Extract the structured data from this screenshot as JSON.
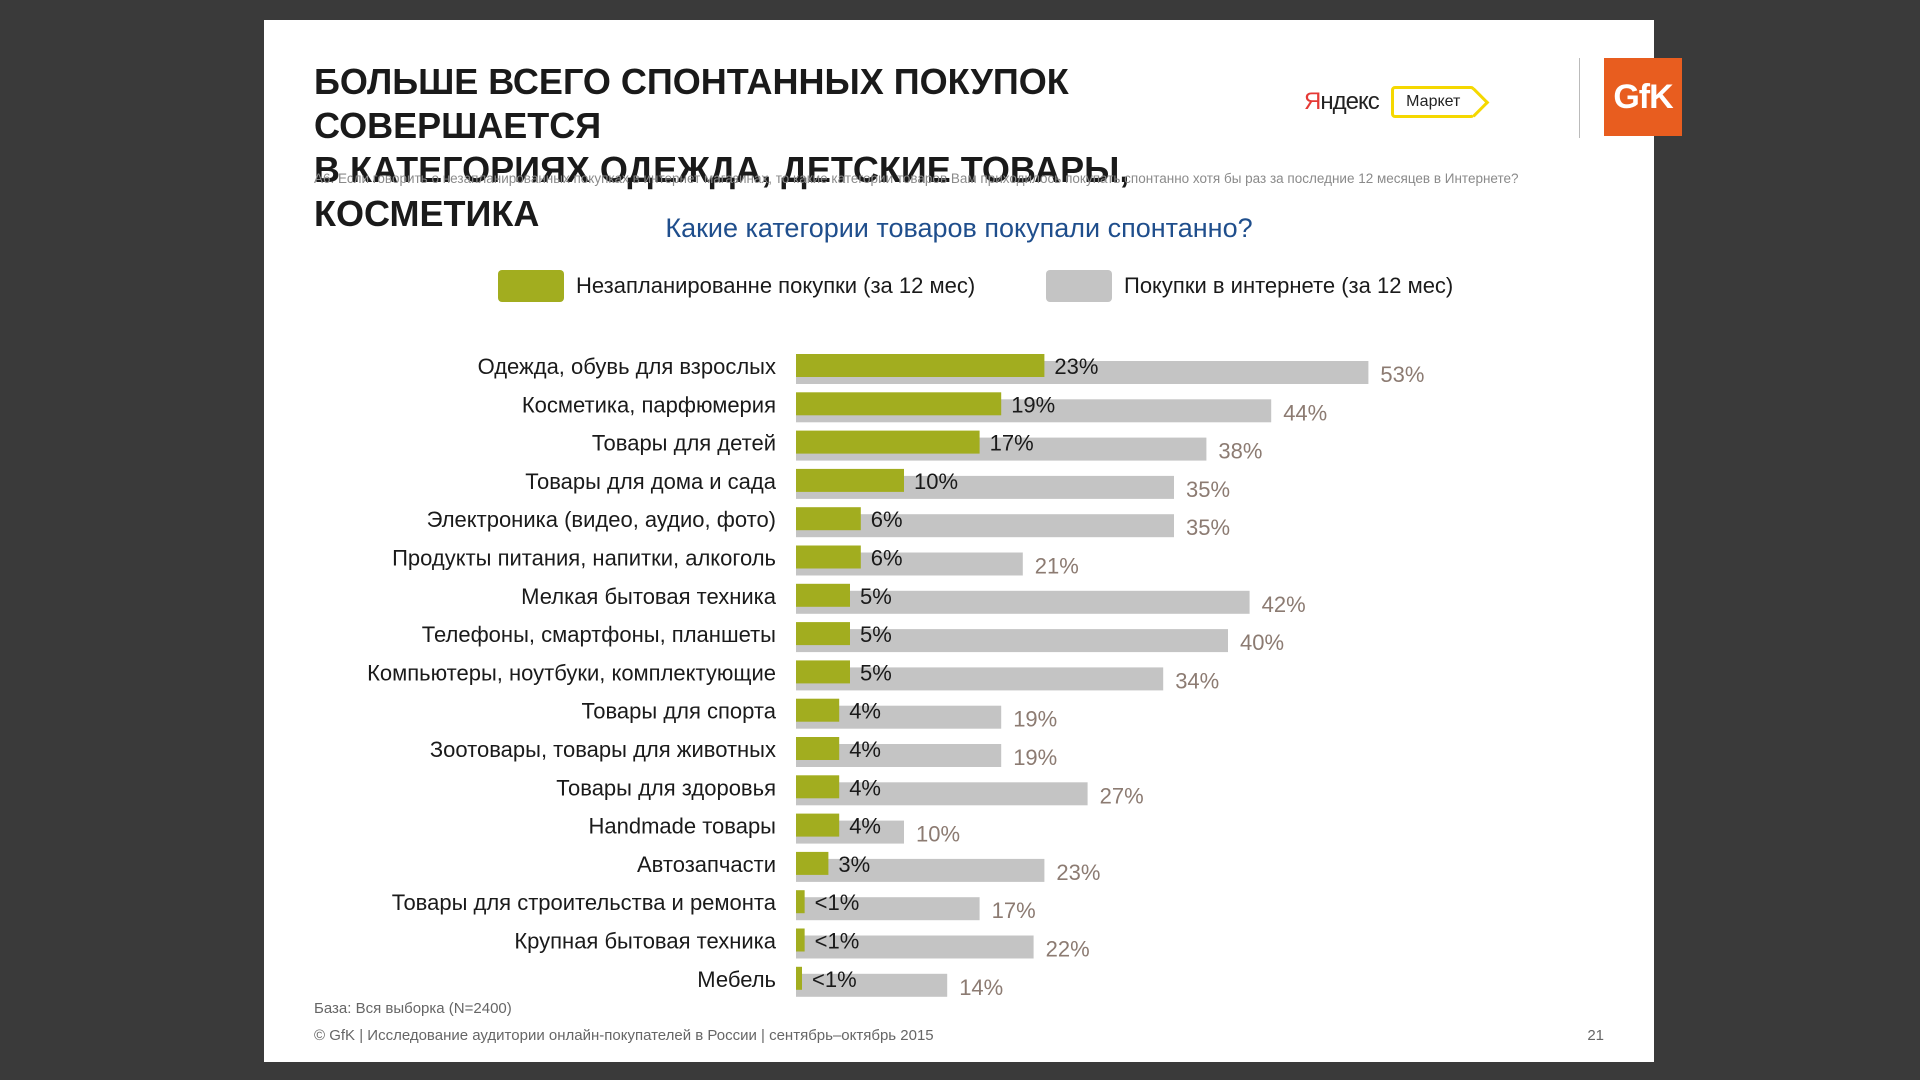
{
  "title_line1": "БОЛЬШЕ ВСЕГО СПОНТАННЫХ ПОКУПОК СОВЕРШАЕТСЯ",
  "title_line2": "В КАТЕГОРИЯХ ОДЕЖДА, ДЕТСКИЕ ТОВАРЫ, КОСМЕТИКА",
  "logos": {
    "yandex_y": "Я",
    "yandex_rest": "ндекс",
    "market": "Маркет",
    "gfk": "GfK"
  },
  "question": "А6. Если говорить о незапланированных покупках в интернет магазинах, то какие категории товаров Вам приходилось покупать спонтанно хотя бы раз за последние 12 месяцев в Интернете?",
  "footer": {
    "base": "База: Вся выборка (N=2400)",
    "source": "© GfK | Исследование аудитории онлайн-покупателей в России | сентябрь–октябрь 2015",
    "page": "21"
  },
  "colors": {
    "unplanned": "#a2ad1f",
    "online": "#c4c4c4",
    "online_label": "#8c7b72",
    "title_blue": "#1f4e8c"
  },
  "chart_data": {
    "type": "bar",
    "orientation": "horizontal",
    "title": "Какие категории товаров покупали спонтанно?",
    "legend_position": "top",
    "categories": [
      "Одежда, обувь для взрослых",
      "Косметика, парфюмерия",
      "Товары для детей",
      "Товары для дома и сада",
      "Электроника (видео, аудио, фото)",
      "Продукты питания, напитки, алкоголь",
      "Мелкая бытовая техника",
      "Телефоны, смартфоны, планшеты",
      "Компьютеры, ноутбуки, комплектующие",
      "Товары для спорта",
      "Зоотовары, товары для животных",
      "Товары для здоровья",
      "Handmade товары",
      "Автозапчасти",
      "Товары для строительства и ремонта",
      "Крупная бытовая техника",
      "Мебель"
    ],
    "series": [
      {
        "name": "Незапланированне покупки (за 12 мес)",
        "values": [
          23,
          19,
          17,
          10,
          6,
          6,
          5,
          5,
          5,
          4,
          4,
          4,
          4,
          3,
          0.8,
          0.8,
          0.5
        ],
        "labels": [
          "23%",
          "19%",
          "17%",
          "10%",
          "6%",
          "6%",
          "5%",
          "5%",
          "5%",
          "4%",
          "4%",
          "4%",
          "4%",
          "3%",
          "<1%",
          "<1%",
          "<1%"
        ]
      },
      {
        "name": "Покупки в интернете (за 12 мес)",
        "values": [
          53,
          44,
          38,
          35,
          35,
          21,
          42,
          40,
          34,
          19,
          19,
          27,
          10,
          23,
          17,
          22,
          14
        ],
        "labels": [
          "53%",
          "44%",
          "38%",
          "35%",
          "35%",
          "21%",
          "42%",
          "40%",
          "34%",
          "19%",
          "19%",
          "27%",
          "10%",
          "23%",
          "17%",
          "22%",
          "14%"
        ]
      }
    ]
  }
}
